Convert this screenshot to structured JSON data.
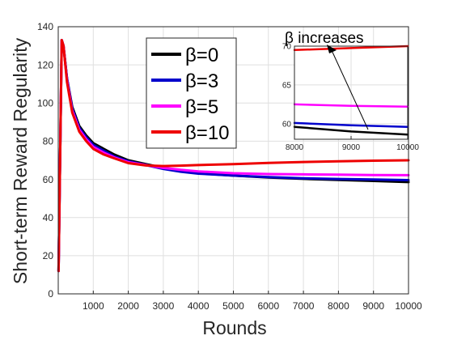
{
  "chart_data": [
    {
      "type": "line",
      "xlabel": "Rounds",
      "ylabel": "Short-term Reward Regularity",
      "xlim": [
        0,
        10000
      ],
      "ylim": [
        0,
        140
      ],
      "xticks": [
        1000,
        2000,
        3000,
        4000,
        5000,
        6000,
        7000,
        8000,
        9000,
        10000
      ],
      "xtick_labels": [
        "1000",
        "2000",
        "3000",
        "4000",
        "5000",
        "6000",
        "7000",
        "8000",
        "9000",
        "10000"
      ],
      "yticks": [
        0,
        20,
        40,
        60,
        80,
        100,
        120,
        140
      ],
      "ytick_labels": [
        "0",
        "20",
        "40",
        "60",
        "80",
        "100",
        "120",
        "140"
      ],
      "grid": true,
      "legend_position": "top-center",
      "series": [
        {
          "name": "β=0",
          "color": "#000000",
          "x": [
            10,
            100,
            150,
            250,
            400,
            600,
            800,
            1000,
            1300,
            1600,
            2000,
            2500,
            3000,
            3500,
            4000,
            5000,
            6000,
            7000,
            8000,
            9000,
            10000
          ],
          "y": [
            12,
            133,
            130,
            113,
            98,
            88,
            83,
            79,
            76,
            73,
            70,
            68,
            66,
            64.5,
            63.2,
            62,
            61,
            60.3,
            59.7,
            59.2,
            58.6
          ]
        },
        {
          "name": "β=3",
          "color": "#0000cc",
          "x": [
            10,
            100,
            150,
            250,
            400,
            600,
            800,
            1000,
            1300,
            1600,
            2000,
            2500,
            3000,
            3500,
            4000,
            5000,
            6000,
            7000,
            8000,
            9000,
            10000
          ],
          "y": [
            12,
            133,
            130,
            113,
            97,
            87,
            82,
            78,
            75,
            72,
            69.5,
            67.5,
            65.5,
            64,
            63,
            62,
            61.2,
            60.6,
            60.2,
            59.9,
            59.6
          ]
        },
        {
          "name": "β=5",
          "color": "#ff00ff",
          "x": [
            10,
            100,
            150,
            250,
            400,
            600,
            800,
            1000,
            1300,
            1600,
            2000,
            2500,
            3000,
            3500,
            4000,
            5000,
            6000,
            7000,
            8000,
            9000,
            10000
          ],
          "y": [
            12,
            133,
            130,
            112,
            96,
            86,
            81,
            77,
            74,
            71.5,
            69,
            67.5,
            66,
            65,
            64.2,
            63.2,
            62.8,
            62.6,
            62.5,
            62.3,
            62.2
          ]
        },
        {
          "name": "β=10",
          "color": "#ee0000",
          "x": [
            10,
            100,
            150,
            250,
            400,
            600,
            800,
            1000,
            1300,
            1600,
            2000,
            2500,
            3000,
            3500,
            4000,
            5000,
            6000,
            7000,
            8000,
            9000,
            10000
          ],
          "y": [
            12,
            133,
            130,
            111,
            95,
            85,
            80,
            76,
            73,
            71,
            68.5,
            67.3,
            67,
            67.2,
            67.5,
            68,
            68.6,
            69.1,
            69.5,
            69.8,
            70
          ]
        }
      ]
    },
    {
      "type": "line",
      "title": "β increases",
      "xlim": [
        8000,
        10000
      ],
      "ylim": [
        58,
        70
      ],
      "xticks": [
        8000,
        9000,
        10000
      ],
      "xtick_labels": [
        "8000",
        "9000",
        "10000"
      ],
      "yticks": [
        60,
        65,
        70
      ],
      "ytick_labels": [
        "60",
        "65",
        "70"
      ],
      "grid": true,
      "annotation": "β increases",
      "series": [
        {
          "name": "β=0",
          "color": "#000000",
          "x": [
            8000,
            9000,
            10000
          ],
          "y": [
            59.6,
            59.0,
            58.6
          ]
        },
        {
          "name": "β=3",
          "color": "#0000cc",
          "x": [
            8000,
            9000,
            10000
          ],
          "y": [
            60.1,
            59.8,
            59.6
          ]
        },
        {
          "name": "β=5",
          "color": "#ff00ff",
          "x": [
            8000,
            9000,
            10000
          ],
          "y": [
            62.5,
            62.3,
            62.2
          ]
        },
        {
          "name": "β=10",
          "color": "#ee0000",
          "x": [
            8000,
            9000,
            10000
          ],
          "y": [
            69.5,
            69.75,
            70
          ]
        }
      ]
    }
  ]
}
